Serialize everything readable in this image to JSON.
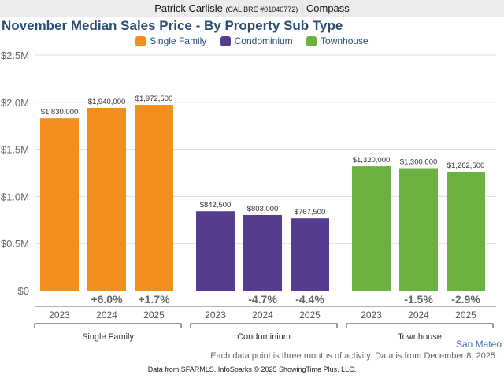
{
  "header": {
    "agent_name": "Patrick Carlisle",
    "license": "(CAL BRE #01040772)",
    "separator": "|",
    "brokerage": "Compass"
  },
  "region_label": "San Mateo",
  "note": "Each data point is three months of activity. Data is from December 8, 2025.",
  "footer": "Data from SFARMLS. InfoSparks © 2025 ShowingTime Plus, LLC.",
  "colors": {
    "single_family": "#f18e1c",
    "condominium": "#553c8e",
    "townhouse": "#6cb041",
    "title": "#2a4d74"
  },
  "chart_data": {
    "type": "bar",
    "title": "November Median Sales Price - By Property Sub Type",
    "xlabel": "",
    "ylabel": "",
    "ylim": [
      0,
      2500000
    ],
    "yticks": [
      0,
      500000,
      1000000,
      1500000,
      2000000,
      2500000
    ],
    "ytick_labels": [
      "$0",
      "$0.5M",
      "$1.0M",
      "$1.5M",
      "$2.0M",
      "$2.5M"
    ],
    "grid": true,
    "legend": {
      "placement": "top-center",
      "entries": [
        "Single Family",
        "Condominium",
        "Townhouse"
      ]
    },
    "groups": [
      {
        "name": "Single Family",
        "color": "#f18e1c",
        "categories": [
          "2023",
          "2024",
          "2025"
        ],
        "values": [
          1830000,
          1940000,
          1972500
        ],
        "value_labels": [
          "$1,830,000",
          "$1,940,000",
          "$1,972,500"
        ],
        "pct_change": [
          "",
          "+6.0%",
          "+1.7%"
        ]
      },
      {
        "name": "Condominium",
        "color": "#553c8e",
        "categories": [
          "2023",
          "2024",
          "2025"
        ],
        "values": [
          842500,
          803000,
          767500
        ],
        "value_labels": [
          "$842,500",
          "$803,000",
          "$767,500"
        ],
        "pct_change": [
          "",
          "-4.7%",
          "-4.4%"
        ]
      },
      {
        "name": "Townhouse",
        "color": "#6cb041",
        "categories": [
          "2023",
          "2024",
          "2025"
        ],
        "values": [
          1320000,
          1300000,
          1262500
        ],
        "value_labels": [
          "$1,320,000",
          "$1,300,000",
          "$1,262,500"
        ],
        "pct_change": [
          "",
          "-1.5%",
          "-2.9%"
        ]
      }
    ]
  }
}
